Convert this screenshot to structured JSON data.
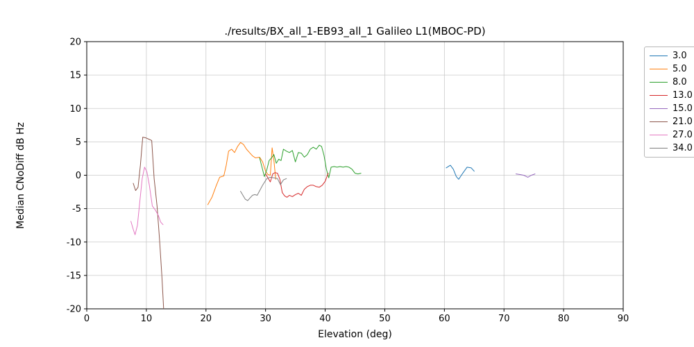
{
  "chart_data": {
    "type": "line",
    "title": "./results/BX_all_1-EB93_all_1 Galileo L1(MBOC-PD)",
    "xlabel": "Elevation (deg)",
    "ylabel": "Median CNoDiff dB Hz",
    "xlim": [
      0,
      90
    ],
    "ylim": [
      -20,
      20
    ],
    "xticks": [
      0,
      10,
      20,
      30,
      40,
      50,
      60,
      70,
      80,
      90
    ],
    "yticks": [
      -20,
      -15,
      -10,
      -5,
      0,
      5,
      10,
      15,
      20
    ],
    "grid": true,
    "legend_position": "outside-right",
    "series": [
      {
        "name": "3.0",
        "color": "#1f77b4",
        "points": [
          [
            60.3,
            1.1
          ],
          [
            61.0,
            1.5
          ],
          [
            61.5,
            0.9
          ],
          [
            62.0,
            -0.2
          ],
          [
            62.4,
            -0.6
          ],
          [
            63.0,
            0.2
          ],
          [
            63.8,
            1.2
          ],
          [
            64.5,
            1.1
          ],
          [
            65.0,
            0.6
          ]
        ]
      },
      {
        "name": "5.0",
        "color": "#ff7f0e",
        "points": [
          [
            20.3,
            -4.4
          ],
          [
            21.0,
            -3.3
          ],
          [
            21.7,
            -1.6
          ],
          [
            22.3,
            -0.3
          ],
          [
            23.0,
            -0.1
          ],
          [
            23.4,
            1.5
          ],
          [
            23.8,
            3.6
          ],
          [
            24.3,
            3.9
          ],
          [
            24.8,
            3.4
          ],
          [
            25.3,
            4.3
          ],
          [
            25.8,
            4.9
          ],
          [
            26.3,
            4.6
          ],
          [
            26.8,
            3.9
          ],
          [
            27.3,
            3.4
          ],
          [
            27.8,
            2.9
          ],
          [
            28.3,
            2.6
          ],
          [
            29.0,
            2.7
          ],
          [
            29.5,
            2.0
          ],
          [
            30.0,
            0.6
          ],
          [
            30.4,
            0.1
          ],
          [
            30.8,
            0.0
          ],
          [
            31.1,
            4.1
          ],
          [
            31.4,
            2.2
          ],
          [
            31.7,
            -0.6
          ]
        ]
      },
      {
        "name": "8.0",
        "color": "#2ca02c",
        "points": [
          [
            29.0,
            2.6
          ],
          [
            29.4,
            1.2
          ],
          [
            29.8,
            -0.2
          ],
          [
            30.2,
            0.8
          ],
          [
            30.6,
            2.2
          ],
          [
            31.0,
            2.6
          ],
          [
            31.4,
            3.1
          ],
          [
            31.8,
            1.8
          ],
          [
            32.2,
            2.4
          ],
          [
            32.6,
            2.2
          ],
          [
            33.0,
            3.9
          ],
          [
            33.5,
            3.6
          ],
          [
            34.0,
            3.4
          ],
          [
            34.5,
            3.7
          ],
          [
            35.0,
            2.0
          ],
          [
            35.5,
            3.4
          ],
          [
            36.0,
            3.3
          ],
          [
            36.5,
            2.7
          ],
          [
            37.0,
            3.1
          ],
          [
            37.5,
            3.9
          ],
          [
            38.0,
            4.2
          ],
          [
            38.5,
            3.9
          ],
          [
            39.0,
            4.5
          ],
          [
            39.4,
            4.3
          ],
          [
            39.8,
            3.0
          ],
          [
            40.2,
            0.9
          ],
          [
            40.6,
            -0.4
          ],
          [
            41.0,
            1.2
          ],
          [
            41.5,
            1.3
          ],
          [
            42.0,
            1.2
          ],
          [
            42.5,
            1.3
          ],
          [
            43.0,
            1.2
          ],
          [
            43.5,
            1.3
          ],
          [
            44.0,
            1.2
          ],
          [
            44.5,
            0.9
          ],
          [
            45.0,
            0.3
          ],
          [
            45.5,
            0.2
          ],
          [
            46.0,
            0.3
          ]
        ]
      },
      {
        "name": "13.0",
        "color": "#d62728",
        "points": [
          [
            30.0,
            0.2
          ],
          [
            30.4,
            -0.4
          ],
          [
            30.8,
            -1.0
          ],
          [
            31.2,
            0.2
          ],
          [
            31.6,
            0.4
          ],
          [
            32.0,
            0.3
          ],
          [
            32.4,
            -0.6
          ],
          [
            32.8,
            -2.6
          ],
          [
            33.2,
            -3.1
          ],
          [
            33.6,
            -3.3
          ],
          [
            34.0,
            -3.0
          ],
          [
            34.5,
            -3.2
          ],
          [
            35.0,
            -2.9
          ],
          [
            35.5,
            -2.7
          ],
          [
            36.0,
            -3.0
          ],
          [
            36.5,
            -2.1
          ],
          [
            37.0,
            -1.7
          ],
          [
            37.5,
            -1.5
          ],
          [
            38.0,
            -1.5
          ],
          [
            38.5,
            -1.7
          ],
          [
            39.0,
            -1.8
          ],
          [
            39.5,
            -1.5
          ],
          [
            40.0,
            -0.9
          ],
          [
            40.5,
            0.3
          ]
        ]
      },
      {
        "name": "15.0",
        "color": "#9467bd",
        "points": [
          [
            72.0,
            0.2
          ],
          [
            72.7,
            0.1
          ],
          [
            73.3,
            0.0
          ],
          [
            74.0,
            -0.3
          ],
          [
            74.6,
            0.0
          ],
          [
            75.2,
            0.2
          ]
        ]
      },
      {
        "name": "21.0",
        "color": "#8c564b",
        "points": [
          [
            7.8,
            -1.2
          ],
          [
            8.2,
            -2.3
          ],
          [
            8.6,
            -1.8
          ],
          [
            9.0,
            1.5
          ],
          [
            9.4,
            5.7
          ],
          [
            9.9,
            5.6
          ],
          [
            10.4,
            5.4
          ],
          [
            10.9,
            5.2
          ],
          [
            11.3,
            -0.5
          ],
          [
            11.8,
            -4.6
          ],
          [
            12.2,
            -9.5
          ],
          [
            12.6,
            -15.0
          ],
          [
            12.9,
            -20.0
          ]
        ]
      },
      {
        "name": "27.0",
        "color": "#e377c2",
        "points": [
          [
            7.4,
            -6.9
          ],
          [
            7.8,
            -8.1
          ],
          [
            8.1,
            -8.9
          ],
          [
            8.5,
            -7.5
          ],
          [
            8.9,
            -4.0
          ],
          [
            9.3,
            -0.5
          ],
          [
            9.7,
            1.2
          ],
          [
            10.1,
            0.5
          ],
          [
            10.5,
            -1.5
          ],
          [
            11.0,
            -4.6
          ],
          [
            11.5,
            -5.2
          ],
          [
            12.0,
            -6.0
          ],
          [
            12.4,
            -7.0
          ],
          [
            12.8,
            -7.4
          ]
        ]
      },
      {
        "name": "34.0",
        "color": "#7f7f7f",
        "points": [
          [
            25.8,
            -2.4
          ],
          [
            26.2,
            -3.0
          ],
          [
            26.6,
            -3.6
          ],
          [
            27.0,
            -3.8
          ],
          [
            27.4,
            -3.4
          ],
          [
            27.8,
            -3.0
          ],
          [
            28.2,
            -2.9
          ],
          [
            28.6,
            -3.0
          ],
          [
            29.5,
            -1.5
          ],
          [
            30.2,
            -0.5
          ],
          [
            30.8,
            -0.3
          ],
          [
            31.4,
            -0.4
          ],
          [
            32.0,
            -0.5
          ],
          [
            32.5,
            -1.4
          ],
          [
            33.0,
            -0.7
          ],
          [
            33.5,
            -0.5
          ]
        ]
      }
    ]
  }
}
